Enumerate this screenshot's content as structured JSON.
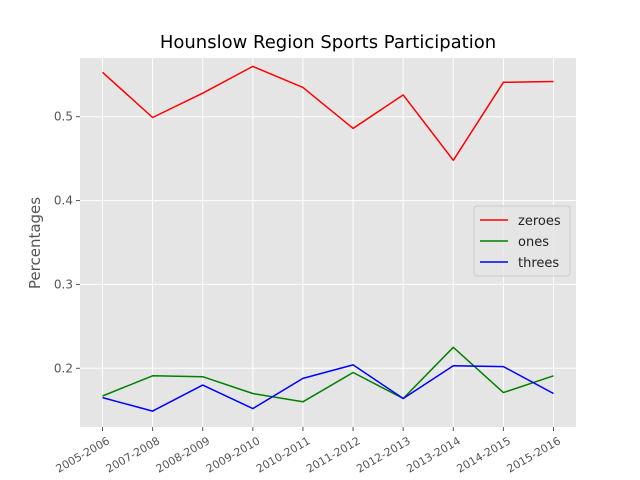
{
  "chart_data": {
    "type": "line",
    "title": "Hounslow Region Sports Participation",
    "xlabel": "",
    "ylabel": "Percentages",
    "categories": [
      "2005-2006",
      "2007-2008",
      "2008-2009",
      "2009-2010",
      "2010-2011",
      "2011-2012",
      "2012-2013",
      "2013-2014",
      "2014-2015",
      "2015-2016"
    ],
    "yticks": [
      0.2,
      0.3,
      0.4,
      0.5
    ],
    "ytick_labels": [
      "0.2",
      "0.3",
      "0.4",
      "0.5"
    ],
    "ylim": [
      0.13,
      0.57
    ],
    "grid": true,
    "legend_position": "center-right",
    "series": [
      {
        "name": "zeroes",
        "color": "#ff0000",
        "values": [
          0.553,
          0.499,
          0.528,
          0.56,
          0.535,
          0.486,
          0.526,
          0.448,
          0.541,
          0.542
        ]
      },
      {
        "name": "ones",
        "color": "#008000",
        "values": [
          0.167,
          0.191,
          0.19,
          0.17,
          0.16,
          0.195,
          0.164,
          0.225,
          0.171,
          0.191
        ]
      },
      {
        "name": "threes",
        "color": "#0000ff",
        "values": [
          0.165,
          0.149,
          0.18,
          0.152,
          0.188,
          0.204,
          0.164,
          0.203,
          0.202,
          0.17
        ]
      }
    ],
    "style": {
      "background": "#e5e5e5",
      "grid_color": "#ffffff"
    }
  }
}
